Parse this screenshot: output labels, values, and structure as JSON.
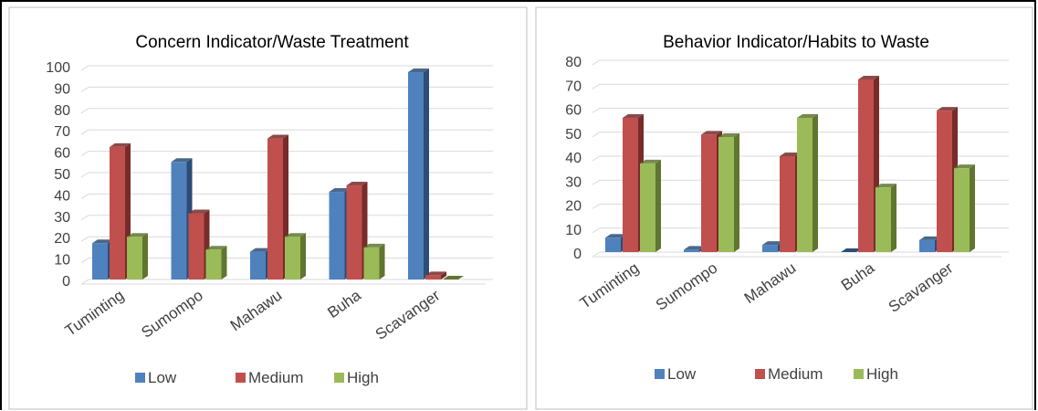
{
  "colors": {
    "low": "#4f81bd",
    "medium": "#c0504d",
    "high": "#9bbb59",
    "low_side": "#2c4d75",
    "medium_side": "#772c2a",
    "high_side": "#5f7530",
    "grid": "#d9d9d9",
    "panel_border": "#bfbfbf",
    "text": "#404040"
  },
  "chart_data": [
    {
      "type": "bar",
      "title": "Concern Indicator/Waste Treatment",
      "categories": [
        "Tuminting",
        "Sumompo",
        "Mahawu",
        "Buha",
        "Scavanger"
      ],
      "series": [
        {
          "name": "Low",
          "values": [
            17,
            55,
            13,
            41,
            97
          ]
        },
        {
          "name": "Medium",
          "values": [
            62,
            31,
            66,
            44,
            2
          ]
        },
        {
          "name": "High",
          "values": [
            20,
            14,
            20,
            15,
            0
          ]
        }
      ],
      "ylim": [
        0,
        100
      ],
      "yticks": [
        "0",
        "10",
        "20",
        "30",
        "40",
        "50",
        "60",
        "70",
        "80",
        "90",
        "100"
      ],
      "grid": true,
      "legend": "bottom",
      "legend_labels": [
        "Low",
        "Medium",
        "High"
      ]
    },
    {
      "type": "bar",
      "title": "Behavior Indicator/Habits to Waste",
      "categories": [
        "Tuminting",
        "Sumompo",
        "Mahawu",
        "Buha",
        "Scavanger"
      ],
      "series": [
        {
          "name": "Low",
          "values": [
            6,
            1,
            3,
            0,
            5
          ]
        },
        {
          "name": "Medium",
          "values": [
            56,
            49,
            40,
            72,
            59
          ]
        },
        {
          "name": "High",
          "values": [
            37,
            48,
            56,
            27,
            35
          ]
        }
      ],
      "ylim": [
        0,
        80
      ],
      "yticks": [
        "0",
        "10",
        "20",
        "30",
        "40",
        "50",
        "60",
        "70",
        "80"
      ],
      "grid": true,
      "legend": "bottom",
      "legend_labels": [
        "Low",
        "Medium",
        "High"
      ]
    }
  ]
}
